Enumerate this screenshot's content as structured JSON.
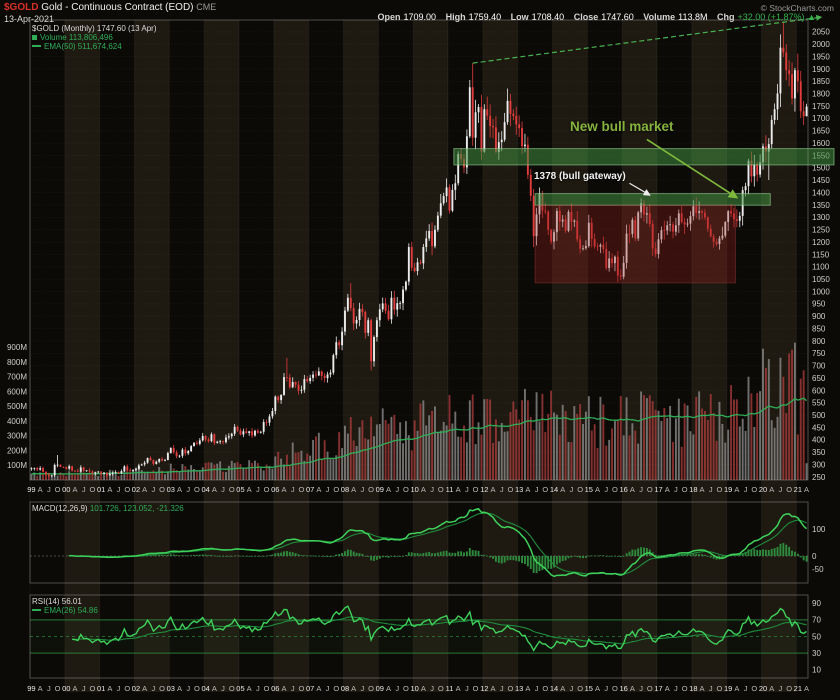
{
  "header": {
    "symbol": "$GOLD",
    "title": "Gold - Continuous Contract (EOD)",
    "exchange": "CME",
    "date": "13-Apr-2021",
    "copyright": "© StockCharts.com",
    "quote_items": [
      {
        "label": "Open",
        "value": "1709.00"
      },
      {
        "label": "High",
        "value": "1759.40"
      },
      {
        "label": "Low",
        "value": "1708.40"
      },
      {
        "label": "Close",
        "value": "1747.60"
      },
      {
        "label": "Volume",
        "value": "113.8M"
      },
      {
        "label": "Chg",
        "value": "+32.00 (+1.87%)",
        "dir": "▲"
      }
    ]
  },
  "legends": {
    "main": "$GOLD (Monthly) 1747.60 (13 Apr)",
    "volume": "Volume 113,806,496",
    "ema": "EMA(50) 511,674,624",
    "macd": "MACD(12,26,9)",
    "macd_values": "101.726, 123.052, -21.326",
    "rsi": "RSI(14) 56.01",
    "rsi_ema": "EMA(26) 54.86"
  },
  "annotations": {
    "new_bull_market": "New bull market",
    "bull_gateway": "1378 (bull gateway)"
  },
  "colors": {
    "background": "#0c0a07",
    "stripe": "#1f1a11",
    "candle_up": "#ececec",
    "candle_down": "#e23d3d",
    "volume_up": "#9a9a9a",
    "volume_down": "#b94040",
    "ema_green": "#2fae57",
    "macd_line": "#3ed25b",
    "macd_signal": "#1e8c3c",
    "macd_hist": "#2e8b3d",
    "rsi_line": "#3ed25b",
    "rsi_ema": "#1e8c3c",
    "band_green_fill": "rgba(64,142,64,0.55)",
    "band_green_stroke": "rgba(150,210,150,0.6)",
    "box_red_fill": "rgba(150,32,32,0.32)",
    "box_red_stroke": "rgba(190,70,70,0.35)",
    "trendline": "#49b14f",
    "annotation_green": "#7fb93c",
    "annotation_white": "#ececec",
    "axis_text": "#cfcfcf",
    "symbol_red": "#d93025",
    "chg_green": "#33b54a"
  },
  "chart_data": {
    "type": "candlestick",
    "symbol": "$GOLD",
    "timeframe": "monthly",
    "start_month": "1999-01",
    "end_month": "2021-04",
    "title": "$GOLD (Monthly)",
    "last": {
      "open": 1709.0,
      "high": 1759.4,
      "low": 1708.4,
      "close": 1747.6,
      "volume_m": 113.8,
      "change": "+32.00",
      "change_pct": "+1.87%"
    },
    "price_axis": {
      "min": 250,
      "max": 2050,
      "step": 50,
      "side": "right"
    },
    "volume_axis": {
      "min_m": 100,
      "max_m": 900,
      "step_m": 100,
      "suffix": "M",
      "side": "left"
    },
    "macd_axis": {
      "ticks": [
        100,
        0,
        -50
      ]
    },
    "rsi_axis": {
      "ticks": [
        90,
        70,
        50,
        30,
        10
      ],
      "overbought": 70,
      "oversold": 30,
      "midline": 50
    },
    "x_axis": {
      "month_letter_labels": {
        "4": "A",
        "7": "J",
        "10": "O"
      },
      "year_label_on_month": 1
    },
    "closes": [
      285,
      287,
      280,
      286,
      271,
      261,
      255,
      256,
      299,
      300,
      291,
      290,
      284,
      294,
      276,
      275,
      272,
      289,
      276,
      277,
      273,
      264,
      269,
      272,
      264,
      266,
      257,
      263,
      267,
      270,
      265,
      274,
      293,
      278,
      275,
      279,
      282,
      297,
      301,
      308,
      327,
      318,
      303,
      312,
      323,
      317,
      319,
      347,
      368,
      350,
      334,
      336,
      361,
      346,
      355,
      375,
      388,
      384,
      398,
      416,
      402,
      395,
      423,
      388,
      393,
      395,
      391,
      410,
      415,
      425,
      453,
      438,
      422,
      435,
      428,
      435,
      418,
      437,
      429,
      433,
      472,
      470,
      495,
      517,
      575,
      561,
      582,
      654,
      653,
      613,
      634,
      623,
      599,
      603,
      646,
      638,
      651,
      664,
      661,
      677,
      659,
      650,
      665,
      672,
      743,
      795,
      783,
      838,
      923,
      975,
      933,
      871,
      885,
      930,
      918,
      833,
      884,
      718,
      816,
      884,
      928,
      952,
      922,
      888,
      975,
      927,
      953,
      953,
      1008,
      1040,
      1180,
      1096,
      1083,
      1118,
      1114,
      1180,
      1215,
      1245,
      1183,
      1250,
      1307,
      1357,
      1386,
      1421,
      1327,
      1411,
      1438,
      1556,
      1536,
      1502,
      1628,
      1826,
      1622,
      1725,
      1746,
      1566,
      1737,
      1711,
      1669,
      1664,
      1564,
      1604,
      1614,
      1685,
      1771,
      1719,
      1710,
      1676,
      1661,
      1588,
      1594,
      1472,
      1387,
      1224,
      1312,
      1396,
      1327,
      1323,
      1250,
      1202,
      1240,
      1326,
      1283,
      1291,
      1246,
      1322,
      1282,
      1287,
      1211,
      1173,
      1175,
      1184,
      1278,
      1213,
      1183,
      1182,
      1189,
      1172,
      1095,
      1134,
      1115,
      1141,
      1065,
      1060,
      1116,
      1234,
      1233,
      1290,
      1215,
      1320,
      1357,
      1311,
      1317,
      1273,
      1174,
      1152,
      1211,
      1248,
      1247,
      1268,
      1272,
      1242,
      1268,
      1316,
      1281,
      1271,
      1275,
      1305,
      1345,
      1318,
      1325,
      1319,
      1300,
      1254,
      1223,
      1201,
      1192,
      1215,
      1226,
      1281,
      1325,
      1316,
      1292,
      1286,
      1306,
      1410,
      1426,
      1529,
      1466,
      1515,
      1473,
      1523,
      1587,
      1566,
      1596,
      1694,
      1737,
      1801,
      1986,
      1967,
      1895,
      1879,
      1781,
      1895,
      1850,
      1729,
      1708,
      1747.6
    ],
    "hl_overrides": {
      "7": {
        "low": 251.7
      },
      "9": {
        "high": 339
      },
      "27": {
        "low": 255.1
      },
      "88": {
        "high": 732
      },
      "110": {
        "high": 1033.9
      },
      "117": {
        "low": 681
      },
      "152": {
        "high": 1923.7
      },
      "173": {
        "low": 1179.4
      },
      "203": {
        "low": 1045.4
      },
      "210": {
        "high": 1377.5
      },
      "248": {
        "high": 1566
      },
      "254": {
        "low": 1451
      },
      "259": {
        "high": 2089.2
      },
      "264": {
        "high": 1962
      },
      "266": {
        "low": 1673.3
      },
      "267": {
        "open": 1709.0,
        "high": 1759.4,
        "low": 1708.4
      }
    },
    "volume_year_avg_m": {
      "1999": 38,
      "2000": 42,
      "2001": 48,
      "2002": 60,
      "2003": 75,
      "2004": 90,
      "2005": 105,
      "2006": 170,
      "2007": 220,
      "2008": 320,
      "2009": 330,
      "2010": 370,
      "2011": 410,
      "2012": 380,
      "2013": 420,
      "2014": 370,
      "2015": 380,
      "2016": 430,
      "2017": 390,
      "2018": 410,
      "2019": 470,
      "2020": 640,
      "2021": 520
    },
    "volume_overrides_m": {
      "117": 430,
      "151": 540,
      "152": 580,
      "171": 540,
      "205": 560,
      "210": 600,
      "247": 700,
      "253": 760,
      "254": 820,
      "259": 700,
      "267": 113.8
    },
    "indicators": {
      "volume_ema_period": 50,
      "macd": [
        12,
        26,
        9
      ],
      "rsi_period": 14,
      "rsi_ema_period": 26
    },
    "zones": [
      {
        "name": "zone-resistance-1550",
        "kind": "green",
        "start_index": 146,
        "end_index": -1,
        "price_top": 1578,
        "price_bottom": 1512
      },
      {
        "name": "zone-gateway-1378",
        "kind": "green",
        "start_index": 174,
        "end_index": 254,
        "price_top": 1396,
        "price_bottom": 1349
      },
      {
        "name": "zone-base-box",
        "kind": "red",
        "start_index": 174,
        "end_index": 242,
        "price_top": 1349,
        "price_bottom": 1035
      }
    ],
    "trendline": {
      "name": "bull-trendline",
      "from_index": 152,
      "from_price": 1923.7,
      "to_index": 259,
      "to_price": 2089.2,
      "extend_to_index": 272,
      "dashed": true
    },
    "arrows": [
      {
        "name": "new-bull-market-arrow",
        "from_index": 212,
        "from_price": 1615,
        "to_index": 243,
        "to_price": 1380,
        "color_key": "annotation_green",
        "marker": "ah-g",
        "width": 1.6
      },
      {
        "name": "bull-gateway-arrow",
        "from_index": 206,
        "from_price": 1438,
        "to_index": 213,
        "to_price": 1390,
        "color_key": "annotation_white",
        "marker": "ah-w",
        "width": 1.2
      }
    ]
  }
}
